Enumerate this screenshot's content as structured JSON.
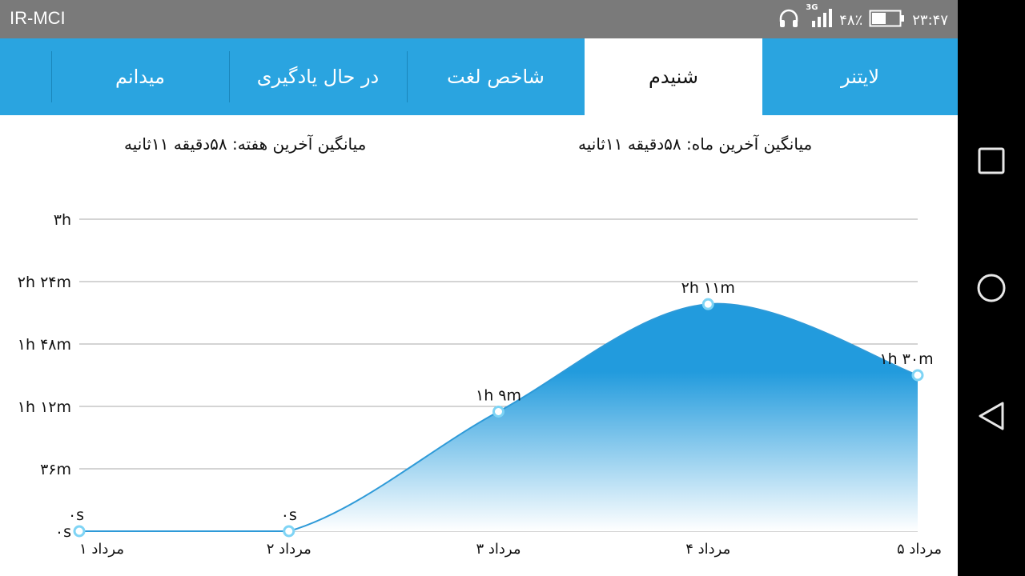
{
  "status_bar": {
    "carrier": "IR-MCI",
    "network": "3G",
    "battery": "۴۸٪",
    "time": "۲۳:۴۷",
    "icons": [
      "headphones-icon",
      "signal-icon",
      "battery-icon"
    ]
  },
  "tabs": [
    {
      "label": "لایتنر",
      "selected": false
    },
    {
      "label": "شنیدم",
      "selected": true
    },
    {
      "label": "شاخص لغت",
      "selected": false
    },
    {
      "label": "در حال یادگیری",
      "selected": false
    },
    {
      "label": "میدانم",
      "selected": false
    }
  ],
  "averages": {
    "month": "میانگین آخرین ماه: ۵۸دقیقه  ۱۱ثانیه",
    "week": "میانگین آخرین هفته: ۵۸دقیقه  ۱۱ثانیه"
  },
  "chart_data": {
    "type": "area",
    "categories": [
      "۱ مرداد",
      "۲ مرداد",
      "۳ مرداد",
      "۴ مرداد",
      "۵ مرداد"
    ],
    "values_minutes": [
      0,
      0,
      69,
      131,
      90
    ],
    "data_labels": [
      "۰s",
      "۰s",
      "۱h ۹m",
      "۲h ۱۱m",
      "۱h ۳۰m"
    ],
    "y_ticks": [
      {
        "value": 0,
        "label": "۰s"
      },
      {
        "value": 36,
        "label": "۳۶m"
      },
      {
        "value": 72,
        "label": "۱h ۱۲m"
      },
      {
        "value": 108,
        "label": "۱h ۴۸m"
      },
      {
        "value": 144,
        "label": "۲h ۲۴m"
      },
      {
        "value": 180,
        "label": "۳h"
      }
    ],
    "ylim": [
      0,
      180
    ],
    "grid": true,
    "colors": {
      "line": "#2e9ad8",
      "fill_top": "#229bdd",
      "fill_bottom": "#ffffff",
      "grid": "#a8a8a8"
    }
  },
  "nav_bar": {
    "icons": [
      "recents-square-icon",
      "home-circle-icon",
      "back-triangle-icon"
    ]
  }
}
